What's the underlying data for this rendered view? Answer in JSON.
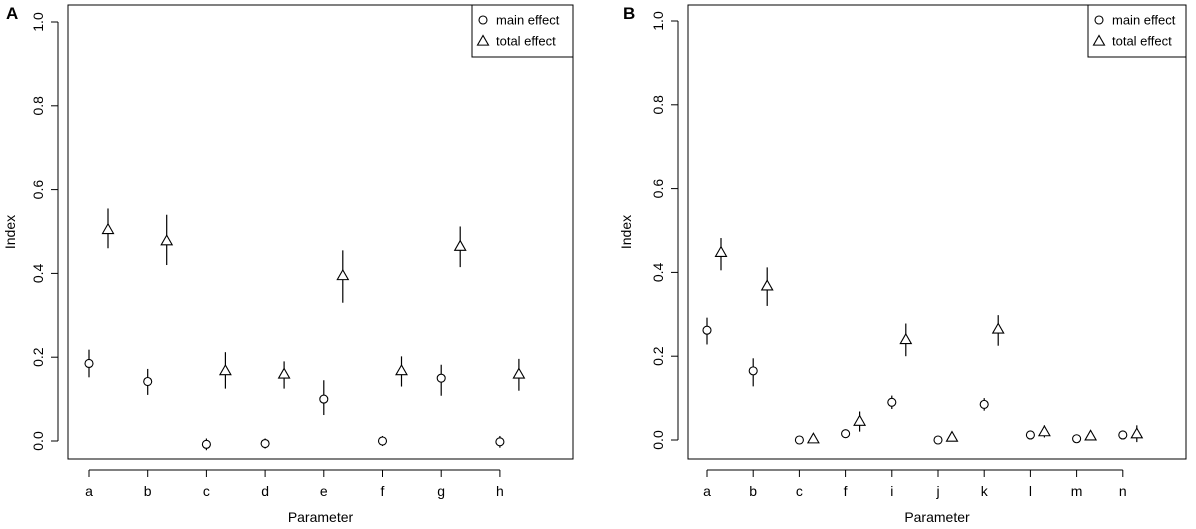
{
  "chart_data": [
    {
      "panel": "A",
      "type": "scatter",
      "xlabel": "Parameter",
      "ylabel": "Index",
      "ylim": [
        0,
        1.0
      ],
      "yticks": [
        "0.0",
        "0.2",
        "0.4",
        "0.6",
        "0.8",
        "1.0"
      ],
      "categories": [
        "a",
        "b",
        "c",
        "d",
        "e",
        "f",
        "g",
        "h"
      ],
      "legend": {
        "position": "top-right",
        "entries": [
          "main effect",
          "total effect"
        ]
      },
      "series": [
        {
          "name": "main effect",
          "marker": "circle",
          "values": [
            0.185,
            0.142,
            -0.008,
            -0.006,
            0.1,
            0.0,
            0.15,
            -0.002
          ],
          "lower": [
            0.152,
            0.11,
            -0.022,
            -0.018,
            0.062,
            -0.012,
            0.108,
            -0.016
          ],
          "upper": [
            0.218,
            0.172,
            0.006,
            0.006,
            0.145,
            0.012,
            0.182,
            0.012
          ]
        },
        {
          "name": "total effect",
          "marker": "triangle",
          "values": [
            0.505,
            0.478,
            0.168,
            0.16,
            0.395,
            0.168,
            0.465,
            0.16
          ],
          "lower": [
            0.46,
            0.42,
            0.125,
            0.125,
            0.33,
            0.13,
            0.415,
            0.12
          ],
          "upper": [
            0.555,
            0.54,
            0.212,
            0.19,
            0.455,
            0.202,
            0.512,
            0.196
          ]
        }
      ]
    },
    {
      "panel": "B",
      "type": "scatter",
      "xlabel": "Parameter",
      "ylabel": "Index",
      "ylim": [
        0,
        1.0
      ],
      "yticks": [
        "0.0",
        "0.2",
        "0.4",
        "0.6",
        "0.8",
        "1.0"
      ],
      "categories": [
        "a",
        "b",
        "c",
        "f",
        "i",
        "j",
        "k",
        "l",
        "m",
        "n"
      ],
      "legend": {
        "position": "top-right",
        "entries": [
          "main effect",
          "total effect"
        ]
      },
      "series": [
        {
          "name": "main effect",
          "marker": "circle",
          "values": [
            0.262,
            0.165,
            0.0,
            0.015,
            0.09,
            0.0,
            0.085,
            0.012,
            0.003,
            0.012
          ],
          "lower": [
            0.228,
            0.128,
            -0.004,
            0.008,
            0.074,
            -0.004,
            0.07,
            0.006,
            -0.002,
            0.004
          ],
          "upper": [
            0.292,
            0.195,
            0.004,
            0.022,
            0.106,
            0.004,
            0.1,
            0.018,
            0.008,
            0.02
          ]
        },
        {
          "name": "total effect",
          "marker": "triangle",
          "values": [
            0.448,
            0.368,
            0.003,
            0.045,
            0.24,
            0.007,
            0.265,
            0.02,
            0.01,
            0.015
          ],
          "lower": [
            0.405,
            0.32,
            -0.003,
            0.02,
            0.2,
            0.0,
            0.225,
            0.006,
            0.0,
            -0.005
          ],
          "upper": [
            0.482,
            0.412,
            0.01,
            0.068,
            0.278,
            0.015,
            0.298,
            0.035,
            0.02,
            0.035
          ]
        }
      ]
    }
  ]
}
